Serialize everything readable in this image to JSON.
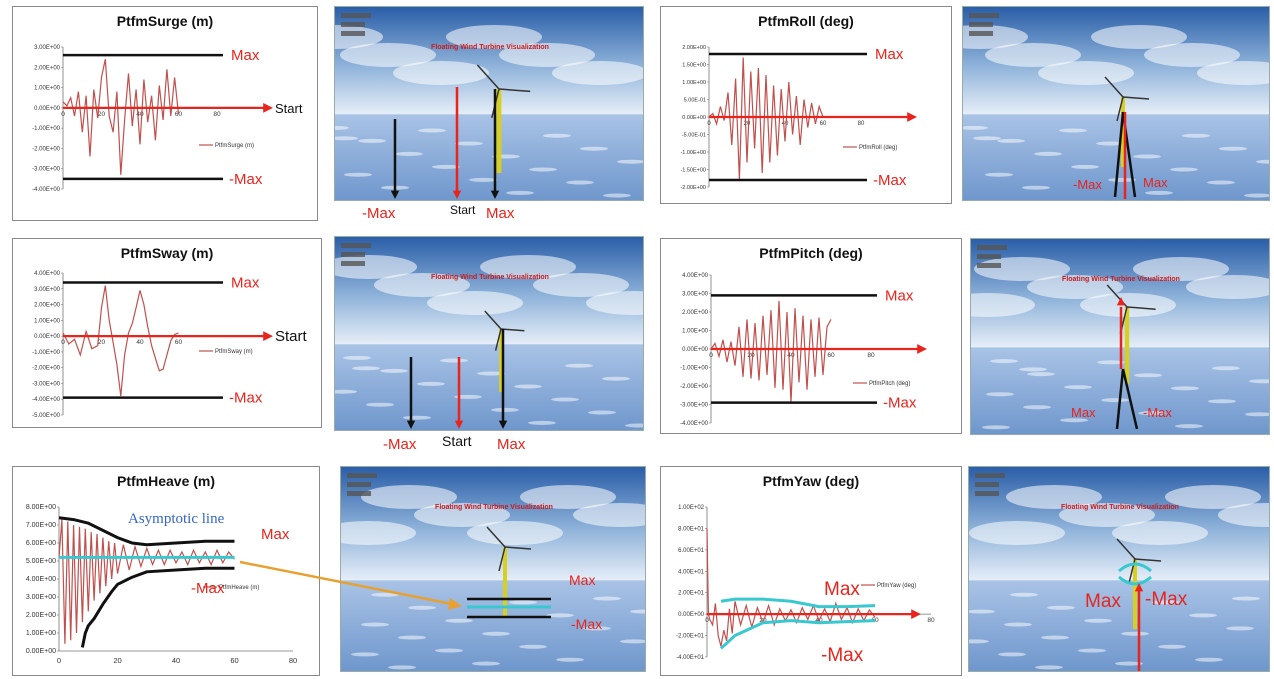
{
  "chart_data": [
    {
      "id": "surge",
      "type": "line",
      "title": "PtfmSurge  (m)",
      "legend": "PtfmSurge  (m)",
      "legend_position": "right",
      "x_ticks": [
        "0",
        "20",
        "40",
        "60",
        "80"
      ],
      "y_ticks": [
        "3.00E+00",
        "2.00E+00",
        "1.00E+00",
        "0.00E+00",
        "-1.00E+00",
        "-2.00E+00",
        "-3.00E+00",
        "-4.00E+00"
      ],
      "xlim": [
        0,
        80
      ],
      "ylim": [
        -4,
        3
      ],
      "max_level": 2.6,
      "min_level": -3.5,
      "annotations": {
        "max": "Max",
        "min": "-Max",
        "start": "Start"
      },
      "x": [
        0,
        2,
        4,
        6,
        8,
        10,
        12,
        14,
        16,
        18,
        20,
        22,
        24,
        26,
        28,
        30,
        32,
        34,
        36,
        38,
        40,
        42,
        44,
        46,
        48,
        50,
        52,
        54,
        56,
        58,
        60
      ],
      "y": [
        0.3,
        0.1,
        0.5,
        -0.4,
        0.8,
        -1.2,
        0.6,
        -2.4,
        0.9,
        -0.5,
        1.5,
        2.4,
        -0.4,
        -1.2,
        0.8,
        -3.3,
        -0.6,
        1.7,
        -0.9,
        0.9,
        -1.8,
        1.4,
        -0.7,
        0.6,
        -1.6,
        1.1,
        -0.6,
        1.9,
        -0.4,
        1.5,
        -0.3
      ]
    },
    {
      "id": "roll",
      "type": "line",
      "title": "PtfmRoll   (deg)",
      "legend": "PtfmRoll   (deg)",
      "legend_position": "right",
      "x_ticks": [
        "0",
        "20",
        "40",
        "60",
        "80"
      ],
      "y_ticks": [
        "2.00E+00",
        "1.50E+00",
        "1.00E+00",
        "5.00E-01",
        "0.00E+00",
        "-5.00E-01",
        "-1.00E+00",
        "-1.50E+00",
        "-2.00E+00"
      ],
      "xlim": [
        0,
        80
      ],
      "ylim": [
        -2,
        2
      ],
      "max_level": 1.8,
      "min_level": -1.8,
      "annotations": {
        "max": "Max",
        "min": "-Max"
      },
      "x": [
        0,
        2,
        4,
        6,
        8,
        10,
        12,
        14,
        16,
        18,
        20,
        22,
        24,
        26,
        28,
        30,
        32,
        34,
        36,
        38,
        40,
        42,
        44,
        46,
        48,
        50,
        52,
        54,
        56,
        58,
        60
      ],
      "y": [
        0,
        0.1,
        -0.2,
        0.3,
        -0.1,
        0.7,
        -0.8,
        1.1,
        -1.8,
        1.7,
        -1.3,
        1.3,
        -0.9,
        1.4,
        -1.6,
        1.2,
        -1.3,
        0.9,
        -1.1,
        0.8,
        -0.7,
        1.0,
        -0.5,
        0.6,
        -0.8,
        0.5,
        -0.3,
        0.4,
        -0.2,
        0.3,
        0
      ]
    },
    {
      "id": "sway",
      "type": "line",
      "title": "PtfmSway   (m)",
      "legend": "PtfmSway   (m)",
      "legend_position": "right",
      "x_ticks": [
        "0",
        "20",
        "40",
        "60"
      ],
      "y_ticks": [
        "4.00E+00",
        "3.00E+00",
        "2.00E+00",
        "1.00E+00",
        "0.00E+00",
        "-1.00E+00",
        "-2.00E+00",
        "-3.00E+00",
        "-4.00E+00",
        "-5.00E+00"
      ],
      "xlim": [
        0,
        80
      ],
      "ylim": [
        -5,
        4
      ],
      "max_level": 3.4,
      "min_level": -3.9,
      "annotations": {
        "max": "Max",
        "min": "-Max",
        "start": "Start"
      },
      "x": [
        0,
        3,
        6,
        9,
        12,
        15,
        18,
        20,
        22,
        24,
        26,
        28,
        30,
        32,
        34,
        36,
        38,
        40,
        42,
        44,
        46,
        48,
        50,
        52,
        54,
        56,
        58,
        60
      ],
      "y": [
        0.2,
        -0.5,
        -0.2,
        -1.2,
        0.3,
        -0.8,
        -0.6,
        1.8,
        3.2,
        1.0,
        -0.4,
        -1.8,
        -3.8,
        -1.2,
        0.2,
        0.8,
        1.8,
        2.9,
        2.0,
        0.6,
        -0.6,
        -1.4,
        -2.2,
        -2.1,
        -1.2,
        -0.3,
        0.1,
        0.2
      ]
    },
    {
      "id": "pitch",
      "type": "line",
      "title": "PtfmPitch   (deg)",
      "legend": "PtfmPitch   (deg)",
      "legend_position": "right",
      "x_ticks": [
        "0",
        "20",
        "40",
        "60",
        "80"
      ],
      "y_ticks": [
        "4.00E+00",
        "3.00E+00",
        "2.00E+00",
        "1.00E+00",
        "0.00E+00",
        "-1.00E+00",
        "-2.00E+00",
        "-3.00E+00",
        "-4.00E+00"
      ],
      "xlim": [
        0,
        80
      ],
      "ylim": [
        -4,
        4
      ],
      "max_level": 2.9,
      "min_level": -2.9,
      "annotations": {
        "max": "Max",
        "min": "-Max"
      },
      "x": [
        0,
        2,
        4,
        6,
        8,
        10,
        12,
        14,
        16,
        18,
        20,
        22,
        24,
        26,
        28,
        30,
        32,
        34,
        36,
        38,
        40,
        42,
        44,
        46,
        48,
        50,
        52,
        54,
        56,
        58,
        60
      ],
      "y": [
        0,
        0.3,
        -0.4,
        0.5,
        -0.7,
        0.4,
        -0.9,
        1.2,
        -1.5,
        1.6,
        -1.6,
        1.4,
        -1.7,
        1.8,
        -1.4,
        2.1,
        -2.1,
        2.6,
        -2.2,
        2.0,
        -2.9,
        2.2,
        -1.8,
        1.8,
        -2.2,
        1.6,
        -1.5,
        1.7,
        -1.4,
        1.2,
        1.6
      ]
    },
    {
      "id": "heave",
      "type": "line",
      "title": "PtfmHeave  (m)",
      "legend": "PtfmHeave  (m)",
      "legend_position": "right",
      "x_ticks": [
        "0",
        "20",
        "40",
        "60",
        "80"
      ],
      "y_ticks": [
        "8.00E+00",
        "7.00E+00",
        "6.00E+00",
        "5.00E+00",
        "4.00E+00",
        "3.00E+00",
        "2.00E+00",
        "1.00E+00",
        "0.00E+00"
      ],
      "xlim": [
        0,
        80
      ],
      "ylim": [
        0,
        8
      ],
      "asymptotic_level": 5.2,
      "annotations": {
        "max": "Max",
        "min": "-Max",
        "asymptote": "Asymptotic line"
      },
      "x": [
        0,
        1,
        2,
        3,
        4,
        5,
        6,
        7,
        8,
        9,
        10,
        11,
        12,
        13,
        14,
        15,
        16,
        17,
        18,
        19,
        20,
        22,
        24,
        26,
        28,
        30,
        32,
        34,
        36,
        38,
        40,
        42,
        44,
        46,
        48,
        50,
        52,
        54,
        56,
        58,
        60
      ],
      "y": [
        5.2,
        7.3,
        0.4,
        7.2,
        0.6,
        7.0,
        1.0,
        6.9,
        1.6,
        6.8,
        2.2,
        6.6,
        2.8,
        6.5,
        3.2,
        6.3,
        3.6,
        6.1,
        4.0,
        6.0,
        4.3,
        5.9,
        4.5,
        5.8,
        4.7,
        5.7,
        4.8,
        5.6,
        4.8,
        5.6,
        4.9,
        5.5,
        4.8,
        5.6,
        4.9,
        5.5,
        4.8,
        5.6,
        4.9,
        5.5,
        5.1
      ],
      "upper_envelope": {
        "x": [
          0,
          5,
          10,
          15,
          20,
          25,
          30,
          40,
          50,
          60
        ],
        "y": [
          7.4,
          7.3,
          7.1,
          6.7,
          6.3,
          6.0,
          5.9,
          6.0,
          6.1,
          6.1
        ]
      },
      "lower_envelope": {
        "x": [
          8,
          9,
          10,
          12,
          15,
          18,
          20,
          25,
          30,
          40,
          50,
          60
        ],
        "y": [
          0.2,
          1.0,
          1.4,
          1.8,
          2.6,
          3.3,
          3.7,
          4.1,
          4.4,
          4.5,
          4.6,
          4.6
        ]
      }
    },
    {
      "id": "yaw",
      "type": "line",
      "title": "PtfmYaw   (deg)",
      "legend": "PtfmYaw   (deg)",
      "legend_position": "right",
      "x_ticks": [
        "0",
        "20",
        "40",
        "60",
        "80"
      ],
      "y_ticks": [
        "1.00E+02",
        "8.00E+01",
        "6.00E+01",
        "4.00E+01",
        "2.00E+01",
        "0.00E+00",
        "-2.00E+01",
        "-4.00E+01"
      ],
      "xlim": [
        0,
        80
      ],
      "ylim": [
        -40,
        100
      ],
      "annotations": {
        "max": "Max",
        "min": "-Max"
      },
      "x": [
        0,
        0.5,
        1,
        2,
        3,
        4,
        5,
        6,
        7,
        8,
        9,
        10,
        12,
        14,
        16,
        18,
        20,
        22,
        24,
        26,
        28,
        30,
        32,
        34,
        36,
        38,
        40,
        42,
        44,
        46,
        48,
        50,
        52,
        54,
        56,
        58,
        60
      ],
      "y": [
        80,
        0,
        -5,
        -10,
        10,
        -20,
        -30,
        -15,
        -25,
        5,
        -18,
        12,
        -10,
        8,
        -12,
        6,
        -8,
        8,
        -10,
        5,
        -6,
        4,
        -8,
        6,
        -5,
        8,
        -6,
        5,
        -7,
        10,
        -5,
        6,
        -8,
        5,
        -6,
        4,
        -3
      ],
      "upper_envelope": {
        "x": [
          5,
          10,
          20,
          30,
          40,
          50,
          60
        ],
        "y": [
          12,
          14,
          14,
          12,
          7,
          7,
          8
        ]
      },
      "lower_envelope": {
        "x": [
          5,
          10,
          20,
          30,
          40,
          50,
          60
        ],
        "y": [
          -32,
          -20,
          -8,
          -6,
          -8,
          -7,
          -6
        ]
      }
    }
  ],
  "scenes": [
    {
      "id": "scene-surge",
      "title": "Floating Wind Turbine Visualization",
      "labels": [
        "-Max",
        "Start",
        "Max"
      ]
    },
    {
      "id": "scene-roll",
      "title": "",
      "labels": [
        "-Max",
        "Max"
      ]
    },
    {
      "id": "scene-sway",
      "title": "Floating Wind Turbine Visualization",
      "labels": [
        "-Max",
        "Start",
        "Max"
      ]
    },
    {
      "id": "scene-pitch",
      "title": "Floating Wind Turbine Visualization",
      "labels": [
        "Max",
        "-Max"
      ]
    },
    {
      "id": "scene-heave",
      "title": "Floating Wind Turbine Visualization",
      "labels": [
        "Max",
        "-Max"
      ]
    },
    {
      "id": "scene-yaw",
      "title": "Floating Wind Turbine Visualization",
      "labels": [
        "Max",
        "-Max"
      ]
    }
  ],
  "colors": {
    "series": "#c0504d",
    "arrow_red": "#e8241c",
    "arrow_black": "#111111",
    "annotation_red": "#e8241c",
    "asymptote": "#3366cc",
    "cyan": "#38c8d0",
    "orange": "#e8a030",
    "sky_top": "#2a5ea8",
    "sky_mid": "#8fb3da",
    "sea": "#6e96cc"
  }
}
